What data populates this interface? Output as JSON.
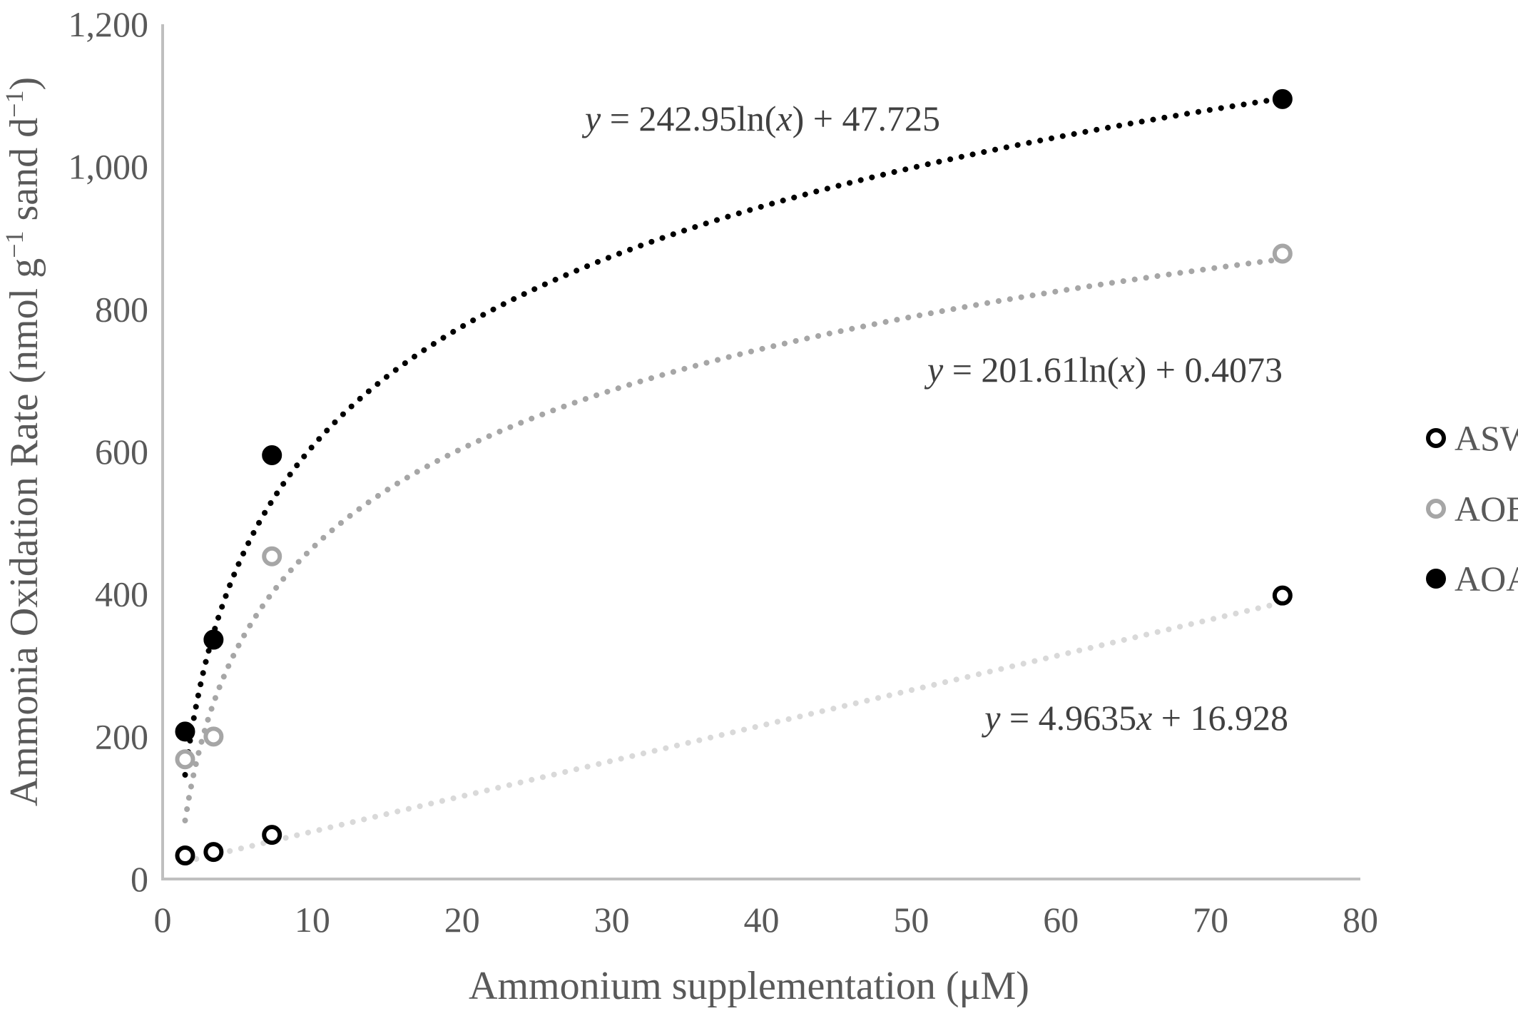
{
  "chart_data": {
    "type": "scatter",
    "title": "",
    "xlabel": "Ammonium supplementation (μM)",
    "ylabel_parts": [
      "Ammonia Oxidation Rate (nmol g",
      "−1",
      " sand d",
      "−1",
      ")"
    ],
    "xlim": [
      0,
      80
    ],
    "ylim": [
      0,
      1200
    ],
    "xticks": [
      "0",
      "10",
      "20",
      "30",
      "40",
      "50",
      "60",
      "70",
      "80"
    ],
    "yticks": [
      "0",
      "200",
      "400",
      "600",
      "800",
      "1,000",
      "1,200"
    ],
    "grid": false,
    "legend_position": "right",
    "series": [
      {
        "name": "ASW",
        "marker": "open-circle-black",
        "color": "#000000",
        "trend_color": "#d9d9d9",
        "trend": "linear",
        "x": [
          1.5,
          3.4,
          7.3,
          74.8
        ],
        "y": [
          33,
          38,
          62,
          398
        ],
        "equation": "y = 4.9635x + 16.928",
        "eq_parts": [
          [
            "y",
            "i"
          ],
          [
            " = 4.9635",
            "n"
          ],
          [
            "x",
            "i"
          ],
          [
            " + 16.928",
            "n"
          ]
        ],
        "coef": [
          4.9635,
          16.928
        ]
      },
      {
        "name": "AOB",
        "marker": "open-circle-gray",
        "color": "#a6a6a6",
        "trend_color": "#a6a6a6",
        "trend": "log",
        "x": [
          1.5,
          3.4,
          7.3,
          74.8
        ],
        "y": [
          168,
          200,
          453,
          878
        ],
        "equation": "y = 201.61ln(x) + 0.4073",
        "eq_parts": [
          [
            "y",
            "i"
          ],
          [
            " = 201.61ln(",
            "n"
          ],
          [
            "x",
            "i"
          ],
          [
            ") + 0.4073",
            "n"
          ]
        ],
        "coef": [
          201.61,
          0.4073
        ]
      },
      {
        "name": "AOA",
        "marker": "filled-circle-black",
        "color": "#000000",
        "trend_color": "#000000",
        "trend": "log",
        "x": [
          1.5,
          3.4,
          7.3,
          74.8
        ],
        "y": [
          207,
          336,
          595,
          1095
        ],
        "equation": "y = 242.95ln(x) + 47.725",
        "eq_parts": [
          [
            "y",
            "i"
          ],
          [
            " = 242.95ln(",
            "n"
          ],
          [
            "x",
            "i"
          ],
          [
            ") + 47.725",
            "n"
          ]
        ],
        "coef": [
          242.95,
          47.725
        ]
      }
    ]
  }
}
